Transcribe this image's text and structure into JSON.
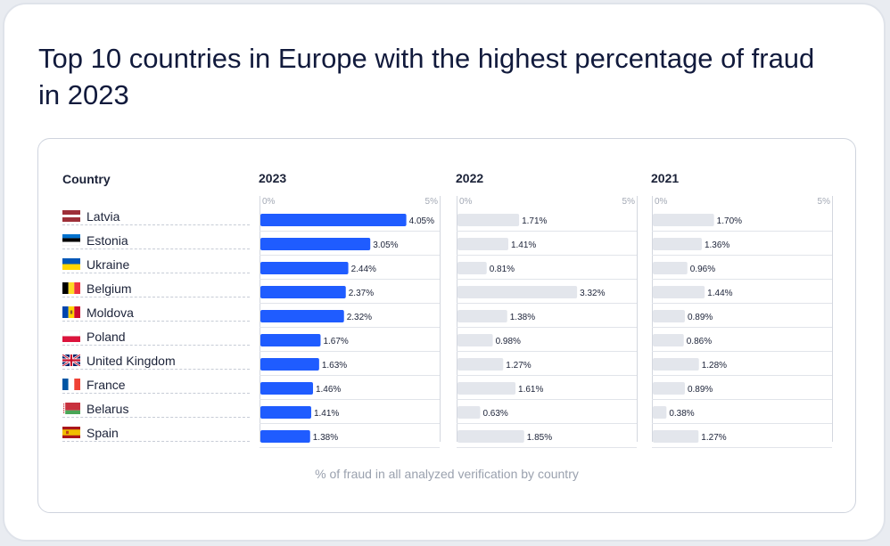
{
  "title": "Top 10 countries in Europe with the highest percentage of fraud in 2023",
  "country_header": "Country",
  "footer": "% of fraud in all analyzed verification by country",
  "colors": {
    "bar_2023": "#1f5cff",
    "bar_other": "#e3e6ec",
    "text": "#111a3c"
  },
  "chart_data": {
    "type": "bar",
    "orientation": "horizontal",
    "categories": [
      "Latvia",
      "Estonia",
      "Ukraine",
      "Belgium",
      "Moldova",
      "Poland",
      "United Kingdom",
      "France",
      "Belarus",
      "Spain"
    ],
    "flags": [
      "latvia-flag-icon",
      "estonia-flag-icon",
      "ukraine-flag-icon",
      "belgium-flag-icon",
      "moldova-flag-icon",
      "poland-flag-icon",
      "uk-flag-icon",
      "france-flag-icon",
      "belarus-flag-icon",
      "spain-flag-icon"
    ],
    "xlim": [
      0,
      5
    ],
    "tick_labels": [
      "0%",
      "5%"
    ],
    "panels": [
      {
        "name": "2023",
        "labels": [
          "4.05%",
          "3.05%",
          "2.44%",
          "2.37%",
          "2.32%",
          "1.67%",
          "1.63%",
          "1.46%",
          "1.41%",
          "1.38%"
        ],
        "values": [
          4.05,
          3.05,
          2.44,
          2.37,
          2.32,
          1.67,
          1.63,
          1.46,
          1.41,
          1.38
        ]
      },
      {
        "name": "2022",
        "labels": [
          "1.71%",
          "1.41%",
          "0.81%",
          "3.32%",
          "1.38%",
          "0.98%",
          "1.27%",
          "1.61%",
          "0.63%",
          "1.85%"
        ],
        "values": [
          1.71,
          1.41,
          0.81,
          3.32,
          1.38,
          0.98,
          1.27,
          1.61,
          0.63,
          1.85
        ]
      },
      {
        "name": "2021",
        "labels": [
          "1.70%",
          "1.36%",
          "0.96%",
          "1.44%",
          "0.89%",
          "0.86%",
          "1.28%",
          "0.89%",
          "0.38%",
          "1.27%"
        ],
        "values": [
          1.7,
          1.36,
          0.96,
          1.44,
          0.89,
          0.86,
          1.28,
          0.89,
          0.38,
          1.27
        ]
      }
    ]
  }
}
